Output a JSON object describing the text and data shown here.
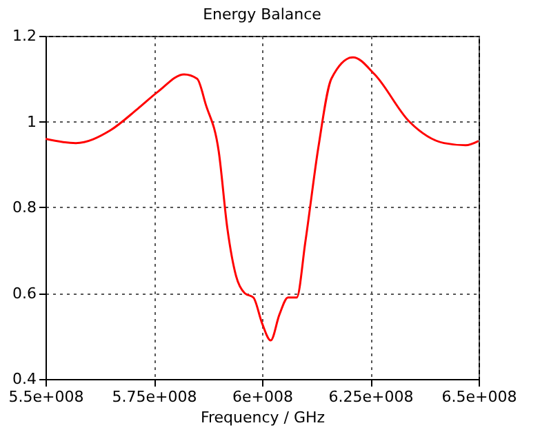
{
  "chart_data": {
    "type": "line",
    "title": "Energy Balance",
    "xlabel": "Frequency / GHz",
    "x": [
      550000000,
      557000000,
      565000000,
      571300000,
      576000000,
      582000000,
      585000000,
      587000000,
      590000000,
      592000000,
      594000000,
      596000000,
      598000000,
      600000000,
      602000000,
      604000000,
      606000000,
      608000000,
      610000000,
      613000000,
      616000000,
      621000000,
      626000000,
      634000000,
      642000000,
      647000000,
      650000000
    ],
    "series": [
      {
        "color": "#ff0000",
        "values": [
          0.96,
          0.95,
          0.98,
          1.03,
          1.07,
          1.11,
          1.1,
          1.04,
          0.93,
          0.75,
          0.64,
          0.6,
          0.59,
          0.53,
          0.49,
          0.55,
          0.59,
          0.59,
          0.72,
          0.94,
          1.1,
          1.15,
          1.11,
          1.0,
          0.95,
          0.945,
          0.955
        ]
      }
    ],
    "xlim": [
      550000000,
      650000000
    ],
    "xticks": [
      {
        "value": 550000000,
        "label": "5.5e+008"
      },
      {
        "value": 575000000,
        "label": "5.75e+008"
      },
      {
        "value": 600000000,
        "label": "6e+008"
      },
      {
        "value": 625000000,
        "label": "6.25e+008"
      },
      {
        "value": 650000000,
        "label": "6.5e+008"
      }
    ],
    "ylim": [
      0.4,
      1.2
    ],
    "yticks": [
      0.4,
      0.6,
      0.8,
      1,
      1.2
    ],
    "grid": true,
    "marker": "none",
    "line_style": "solid"
  }
}
